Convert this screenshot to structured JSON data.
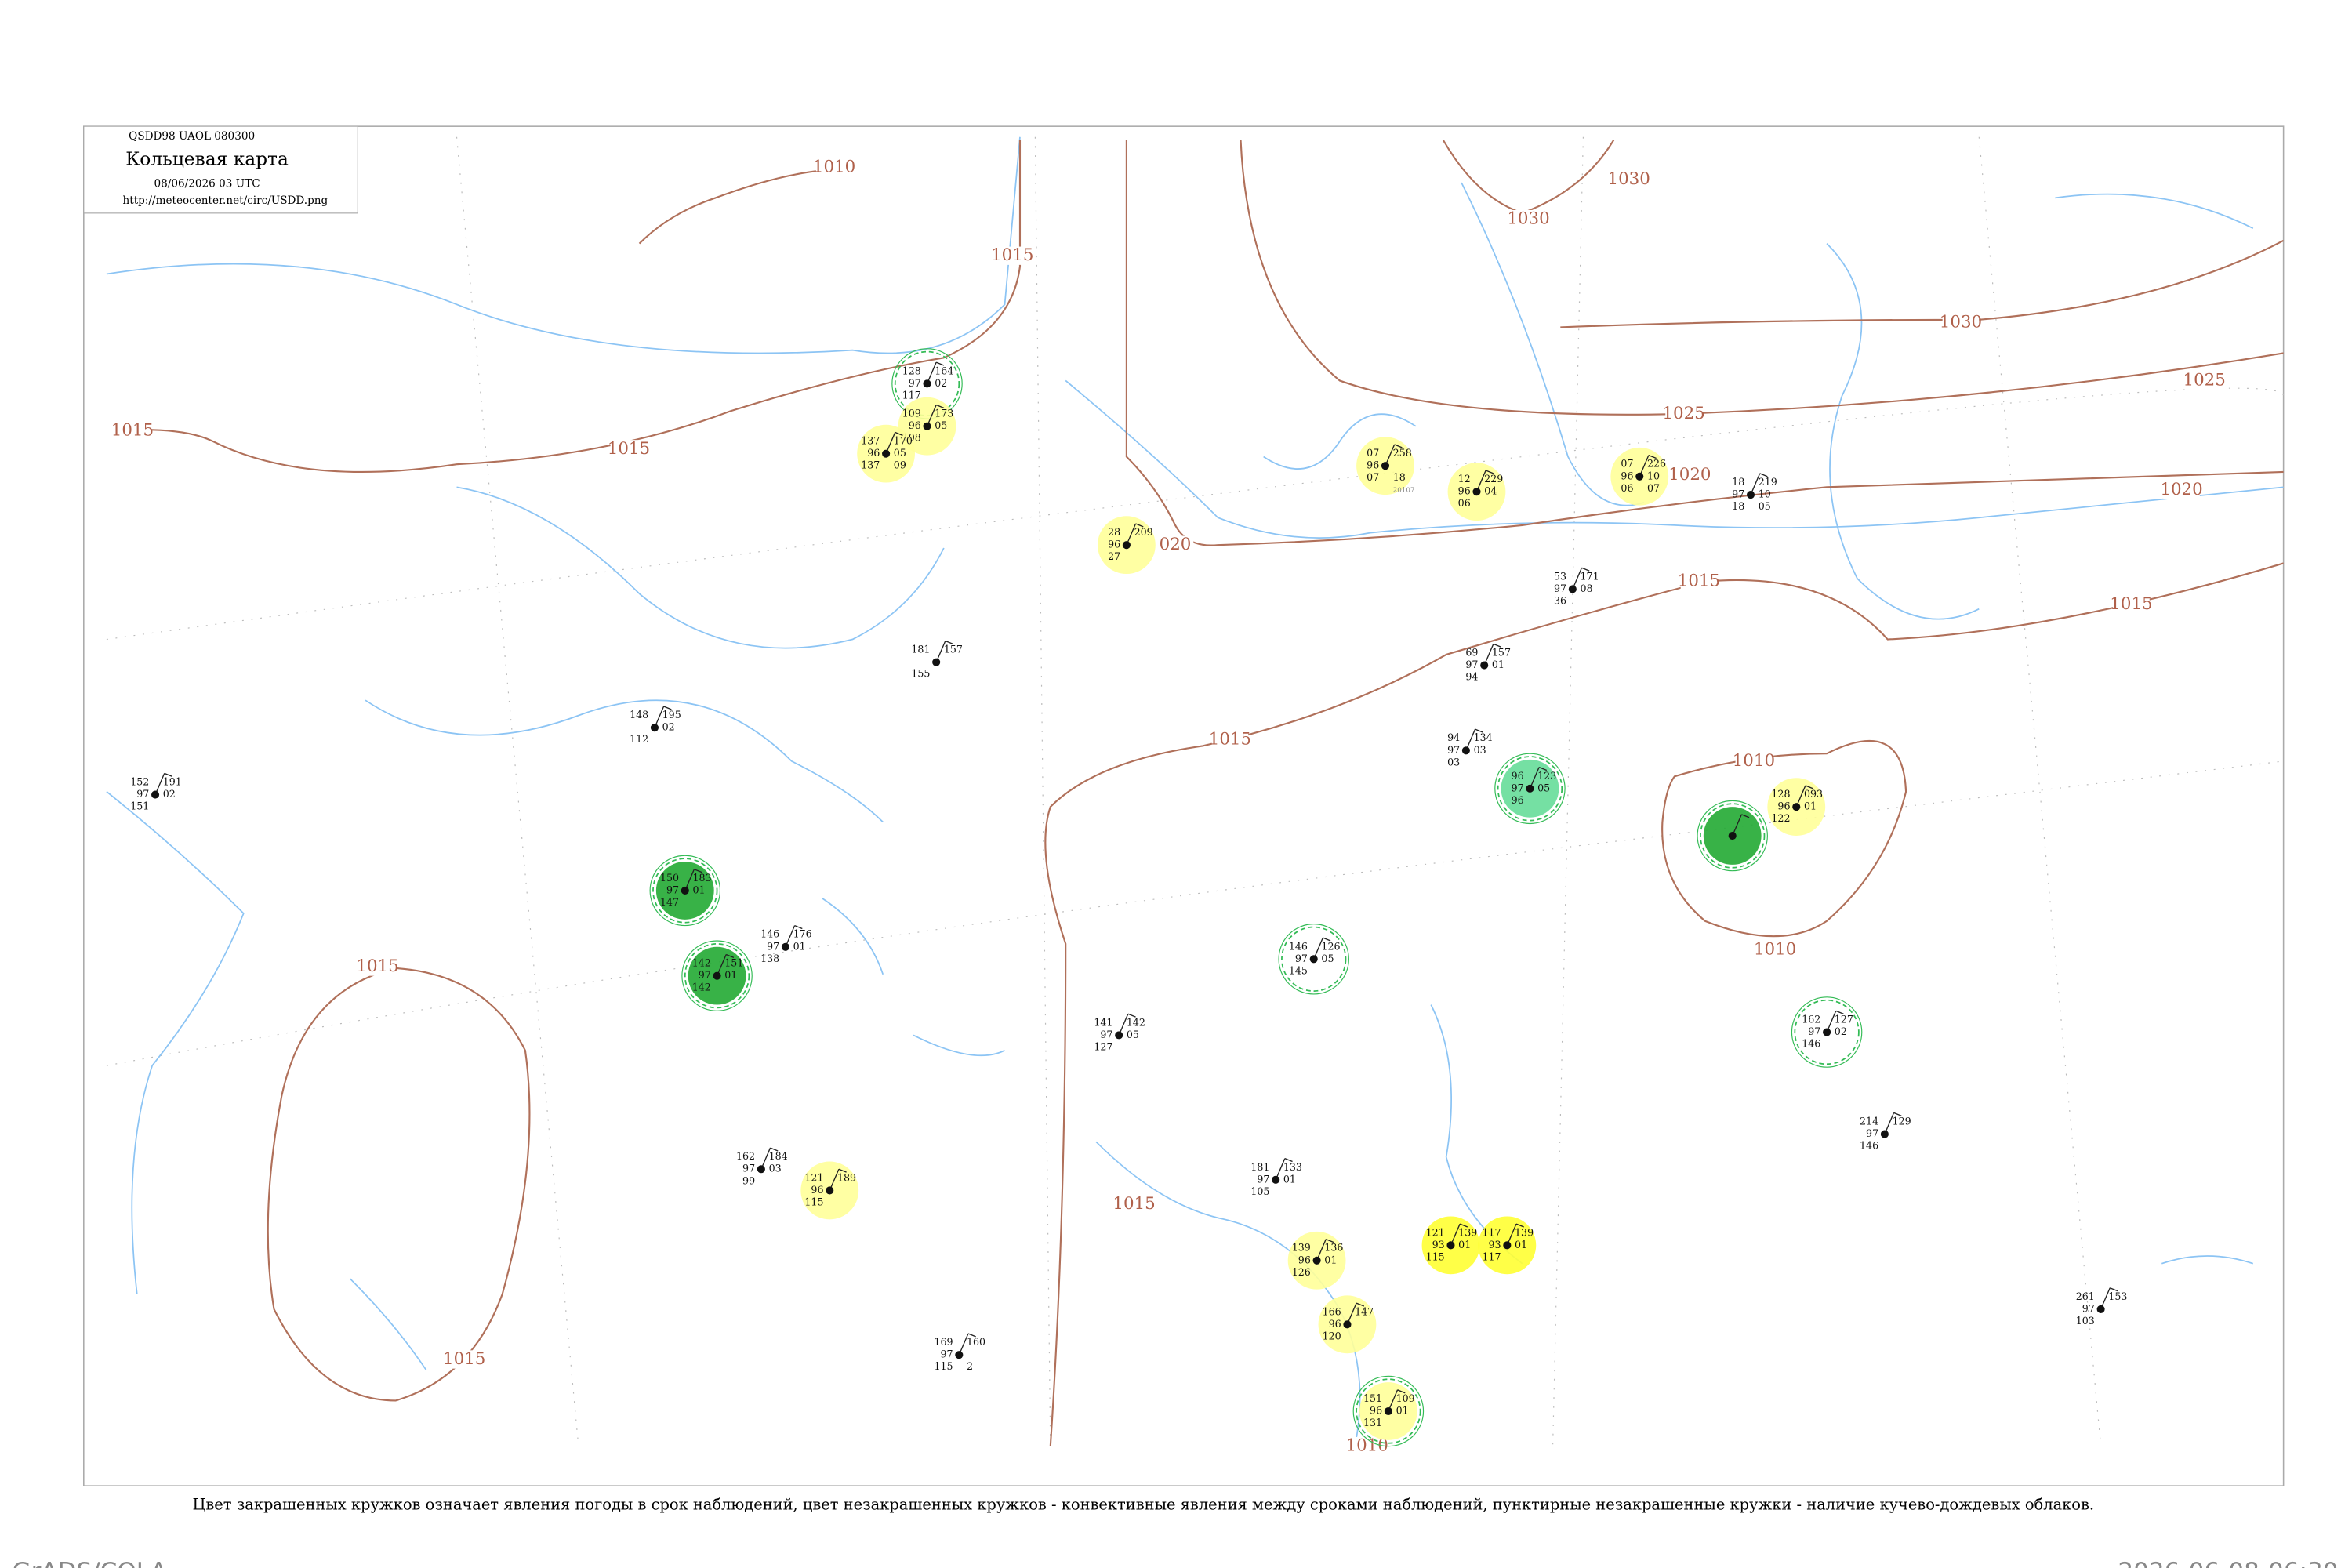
{
  "header": {
    "code": "QSDD98  UAOL  080300",
    "title": "Кольцевая карта",
    "time": "08/06/2026 03 UTC",
    "url": "http://meteocenter.net/circ/USDD.png"
  },
  "caption": "Цвет закрашенных кружков означает явления погоды в срок наблюдений, цвет незакрашенных кружков - конвективные явления между сроками наблюдений, пунктирные незакрашенные кружки - наличие кучево-дождевых облаков.",
  "footer": {
    "left": "GrADS/COLA",
    "right": "2026-06-08-06:30"
  },
  "isobar_labels": [
    "1010",
    "1015",
    "1015",
    "1015",
    "1030",
    "1030",
    "1030",
    "1025",
    "1025",
    "020",
    "1020",
    "1020",
    "1015",
    "1015",
    "1015",
    "1010",
    "1010",
    "1015",
    "1015",
    "1015",
    "1010"
  ],
  "stations": [
    {
      "labels": [
        "128",
        "164",
        "97",
        "02",
        "117",
        ""
      ],
      "id": "",
      "fill": null,
      "ring": "#33bb55"
    },
    {
      "labels": [
        "109",
        "173",
        "96",
        "05",
        "108",
        ""
      ],
      "id": "",
      "fill": "#ffff99",
      "ring": null
    },
    {
      "labels": [
        "137",
        "170",
        "96",
        "05",
        "137",
        "09"
      ],
      "id": "",
      "fill": "#ffff99",
      "ring": null
    },
    {
      "labels": [
        "07",
        "258",
        "96",
        "",
        "07",
        "18"
      ],
      "id": "20107",
      "fill": "#ffff99",
      "ring": null
    },
    {
      "labels": [
        "12",
        "229",
        "96",
        "04",
        "06",
        ""
      ],
      "id": "",
      "fill": "#ffff99",
      "ring": null
    },
    {
      "labels": [
        "07",
        "226",
        "96",
        "10",
        "06",
        "07"
      ],
      "id": "",
      "fill": "#ffff99",
      "ring": null
    },
    {
      "labels": [
        "28",
        "209",
        "96",
        "",
        "27",
        ""
      ],
      "id": "",
      "fill": "#ffff99",
      "ring": null
    },
    {
      "labels": [
        "18",
        "219",
        "97",
        "10",
        "18",
        "05"
      ],
      "id": "",
      "fill": null,
      "ring": null
    },
    {
      "labels": [
        "53",
        "171",
        "97",
        "08",
        "36",
        ""
      ],
      "id": "",
      "fill": null,
      "ring": null
    },
    {
      "labels": [
        "69",
        "157",
        "97",
        "01",
        "94",
        ""
      ],
      "id": "",
      "fill": null,
      "ring": null
    },
    {
      "labels": [
        "181",
        "157",
        "",
        "",
        "155",
        ""
      ],
      "id": "",
      "fill": null,
      "ring": null
    },
    {
      "labels": [
        "148",
        "195",
        "",
        "02",
        "112",
        ""
      ],
      "id": "",
      "fill": null,
      "ring": null
    },
    {
      "labels": [
        "94",
        "134",
        "97",
        "03",
        "03",
        ""
      ],
      "id": "",
      "fill": null,
      "ring": null
    },
    {
      "labels": [
        "96",
        "123",
        "97",
        "05",
        "96",
        ""
      ],
      "id": "",
      "fill": "#66dd99",
      "ring": "#33bb55"
    },
    {
      "labels": [
        "128",
        "093",
        "96",
        "01",
        "122",
        ""
      ],
      "id": "",
      "fill": "#ffff99",
      "ring": null
    },
    {
      "labels": [
        "",
        "",
        "",
        "",
        "",
        ""
      ],
      "id": "",
      "fill": "#22aa33",
      "ring": "#33bb55"
    },
    {
      "labels": [
        "150",
        "183",
        "97",
        "01",
        "147",
        ""
      ],
      "id": "",
      "fill": "#22aa33",
      "ring": "#33bb55"
    },
    {
      "labels": [
        "142",
        "151",
        "97",
        "01",
        "142",
        ""
      ],
      "id": "",
      "fill": "#22aa33",
      "ring": "#33bb55"
    },
    {
      "labels": [
        "152",
        "191",
        "97",
        "02",
        "151",
        ""
      ],
      "id": "",
      "fill": null,
      "ring": null
    },
    {
      "labels": [
        "146",
        "176",
        "97",
        "01",
        "138",
        ""
      ],
      "id": "",
      "fill": null,
      "ring": null
    },
    {
      "labels": [
        "146",
        "126",
        "97",
        "05",
        "145",
        ""
      ],
      "id": "",
      "fill": null,
      "ring": "#33bb55"
    },
    {
      "labels": [
        "162",
        "127",
        "97",
        "02",
        "146",
        ""
      ],
      "id": "",
      "fill": null,
      "ring": "#33bb55"
    },
    {
      "labels": [
        "141",
        "142",
        "97",
        "05",
        "127",
        ""
      ],
      "id": "",
      "fill": null,
      "ring": null
    },
    {
      "labels": [
        "121",
        "189",
        "96",
        "",
        "115",
        ""
      ],
      "id": "",
      "fill": "#ffff99",
      "ring": null
    },
    {
      "labels": [
        "162",
        "184",
        "97",
        "03",
        "99",
        ""
      ],
      "id": "",
      "fill": null,
      "ring": null
    },
    {
      "labels": [
        "139",
        "136",
        "96",
        "01",
        "126",
        ""
      ],
      "id": "",
      "fill": "#ffff99",
      "ring": null
    },
    {
      "labels": [
        "121",
        "139",
        "93",
        "01",
        "115",
        ""
      ],
      "id": "",
      "fill": "#ffff33",
      "ring": null
    },
    {
      "labels": [
        "117",
        "139",
        "93",
        "01",
        "117",
        ""
      ],
      "id": "",
      "fill": "#ffff33",
      "ring": null
    },
    {
      "labels": [
        "166",
        "147",
        "96",
        "",
        "120",
        ""
      ],
      "id": "",
      "fill": "#ffff99",
      "ring": null
    },
    {
      "labels": [
        "151",
        "109",
        "96",
        "01",
        "131",
        ""
      ],
      "id": "",
      "fill": "#ffff99",
      "ring": "#33bb55"
    },
    {
      "labels": [
        "214",
        "129",
        "97",
        "",
        "146",
        ""
      ],
      "id": "",
      "fill": null,
      "ring": null
    },
    {
      "labels": [
        "261",
        "153",
        "97",
        "",
        "103",
        ""
      ],
      "id": "",
      "fill": null,
      "ring": null
    },
    {
      "labels": [
        "169",
        "160",
        "97",
        "",
        "115",
        "2"
      ],
      "id": "",
      "fill": null,
      "ring": null
    },
    {
      "labels": [
        "181",
        "133",
        "97",
        "01",
        "105",
        ""
      ],
      "id": "",
      "fill": null,
      "ring": null
    }
  ]
}
